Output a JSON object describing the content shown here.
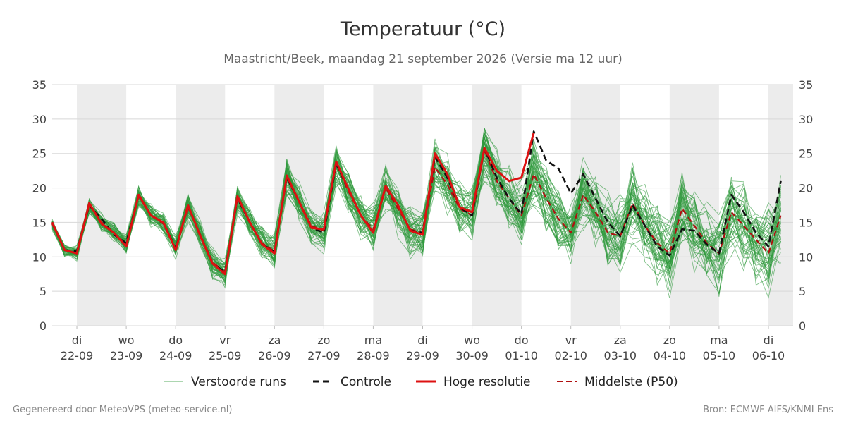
{
  "chart_data": {
    "type": "line",
    "title": "Temperatuur (°C)",
    "subtitle": "Maastricht/Beek, maandag 21 september 2026 (Versie ma 12 uur)",
    "ylim": [
      0,
      35
    ],
    "yticks": [
      0,
      5,
      10,
      15,
      20,
      25,
      30,
      35
    ],
    "grid": true,
    "legend_position": "bottom",
    "x_start": "2026-09-21 12:00",
    "x_end": "2026-10-06 12:00",
    "x_ticks": [
      {
        "date": "2026-09-22",
        "day": "di",
        "label": "22-09"
      },
      {
        "date": "2026-09-23",
        "day": "wo",
        "label": "23-09"
      },
      {
        "date": "2026-09-24",
        "day": "do",
        "label": "24-09"
      },
      {
        "date": "2026-09-25",
        "day": "vr",
        "label": "25-09"
      },
      {
        "date": "2026-09-26",
        "day": "za",
        "label": "26-09"
      },
      {
        "date": "2026-09-27",
        "day": "zo",
        "label": "27-09"
      },
      {
        "date": "2026-09-28",
        "day": "ma",
        "label": "28-09"
      },
      {
        "date": "2026-09-29",
        "day": "di",
        "label": "29-09"
      },
      {
        "date": "2026-09-30",
        "day": "wo",
        "label": "30-09"
      },
      {
        "date": "2026-10-01",
        "day": "do",
        "label": "01-10"
      },
      {
        "date": "2026-10-02",
        "day": "vr",
        "label": "02-10"
      },
      {
        "date": "2026-10-03",
        "day": "za",
        "label": "03-10"
      },
      {
        "date": "2026-10-04",
        "day": "zo",
        "label": "04-10"
      },
      {
        "date": "2026-10-05",
        "day": "ma",
        "label": "05-10"
      },
      {
        "date": "2026-10-06",
        "day": "di",
        "label": "06-10"
      }
    ],
    "shaded_days": [
      "2026-09-22",
      "2026-09-24",
      "2026-09-26",
      "2026-09-28",
      "2026-09-30",
      "2026-10-02",
      "2026-10-04",
      "2026-10-06"
    ],
    "series": [
      {
        "name": "Hoge resolutie",
        "style": "solid",
        "color": "#dd1111",
        "x": [
          "2026-09-21 12:00",
          "2026-09-21 18:00",
          "2026-09-22 00:00",
          "2026-09-22 06:00",
          "2026-09-22 12:00",
          "2026-09-22 18:00",
          "2026-09-23 00:00",
          "2026-09-23 06:00",
          "2026-09-23 12:00",
          "2026-09-23 18:00",
          "2026-09-24 00:00",
          "2026-09-24 06:00",
          "2026-09-24 12:00",
          "2026-09-24 18:00",
          "2026-09-25 00:00",
          "2026-09-25 06:00",
          "2026-09-25 12:00",
          "2026-09-25 18:00",
          "2026-09-26 00:00",
          "2026-09-26 06:00",
          "2026-09-26 12:00",
          "2026-09-26 18:00",
          "2026-09-27 00:00",
          "2026-09-27 06:00",
          "2026-09-27 12:00",
          "2026-09-27 18:00",
          "2026-09-28 00:00",
          "2026-09-28 06:00",
          "2026-09-28 12:00",
          "2026-09-28 18:00",
          "2026-09-29 00:00",
          "2026-09-29 06:00",
          "2026-09-29 12:00",
          "2026-09-29 18:00",
          "2026-09-30 00:00",
          "2026-09-30 06:00",
          "2026-09-30 12:00",
          "2026-09-30 18:00",
          "2026-10-01 00:00",
          "2026-10-01 06:00",
          "2026-10-01 12:00"
        ],
        "values": [
          15.0,
          11.0,
          10.5,
          17.8,
          14.8,
          13.5,
          11.5,
          19.0,
          16.0,
          15.0,
          11.0,
          17.5,
          13.0,
          9.0,
          7.5,
          18.8,
          15.0,
          11.8,
          10.5,
          21.8,
          18.0,
          14.2,
          14.0,
          23.8,
          19.8,
          16.0,
          13.5,
          20.3,
          17.5,
          13.8,
          13.2,
          25.0,
          22.0,
          17.2,
          16.5,
          25.8,
          22.5,
          21.0,
          21.5,
          28.0,
          null
        ]
      },
      {
        "name": "Controle",
        "style": "dashed",
        "color": "#111111",
        "x": [
          "2026-09-21 12:00",
          "2026-09-21 18:00",
          "2026-09-22 00:00",
          "2026-09-22 06:00",
          "2026-09-22 12:00",
          "2026-09-22 18:00",
          "2026-09-23 00:00",
          "2026-09-23 06:00",
          "2026-09-23 12:00",
          "2026-09-23 18:00",
          "2026-09-24 00:00",
          "2026-09-24 06:00",
          "2026-09-24 12:00",
          "2026-09-24 18:00",
          "2026-09-25 00:00",
          "2026-09-25 06:00",
          "2026-09-25 12:00",
          "2026-09-25 18:00",
          "2026-09-26 00:00",
          "2026-09-26 06:00",
          "2026-09-26 12:00",
          "2026-09-26 18:00",
          "2026-09-27 00:00",
          "2026-09-27 06:00",
          "2026-09-27 12:00",
          "2026-09-27 18:00",
          "2026-09-28 00:00",
          "2026-09-28 06:00",
          "2026-09-28 12:00",
          "2026-09-28 18:00",
          "2026-09-29 00:00",
          "2026-09-29 06:00",
          "2026-09-29 12:00",
          "2026-09-29 18:00",
          "2026-09-30 00:00",
          "2026-09-30 06:00",
          "2026-09-30 12:00",
          "2026-09-30 18:00",
          "2026-10-01 00:00",
          "2026-10-01 06:00",
          "2026-10-01 12:00",
          "2026-10-01 18:00",
          "2026-10-02 00:00",
          "2026-10-02 06:00",
          "2026-10-02 12:00",
          "2026-10-02 18:00",
          "2026-10-03 00:00",
          "2026-10-03 06:00",
          "2026-10-03 12:00",
          "2026-10-03 18:00",
          "2026-10-04 00:00",
          "2026-10-04 06:00",
          "2026-10-04 12:00",
          "2026-10-04 18:00",
          "2026-10-05 00:00",
          "2026-10-05 06:00",
          "2026-10-05 12:00",
          "2026-10-05 18:00",
          "2026-10-06 00:00",
          "2026-10-06 06:00",
          "2026-10-06 12:00"
        ],
        "values": [
          15.0,
          11.0,
          10.8,
          17.5,
          15.5,
          13.2,
          12.0,
          19.0,
          16.0,
          15.0,
          11.2,
          17.5,
          13.0,
          9.0,
          7.8,
          18.5,
          15.0,
          11.8,
          10.8,
          21.5,
          18.0,
          14.2,
          13.5,
          23.5,
          19.8,
          16.0,
          13.5,
          20.3,
          17.5,
          13.8,
          13.5,
          24.5,
          21.5,
          17.2,
          16.0,
          25.8,
          21.5,
          18.5,
          16.2,
          28.2,
          24.0,
          22.8,
          19.2,
          22.0,
          18.5,
          15.0,
          13.0,
          17.5,
          14.5,
          11.5,
          10.2,
          14.0,
          13.8,
          11.8,
          10.5,
          19.0,
          16.5,
          13.5,
          11.5,
          21.0,
          null
        ]
      },
      {
        "name": "Middelste (P50)",
        "style": "dashed",
        "color": "#b01010",
        "x": [
          "2026-09-21 12:00",
          "2026-09-21 18:00",
          "2026-09-22 00:00",
          "2026-09-22 06:00",
          "2026-09-22 12:00",
          "2026-09-22 18:00",
          "2026-09-23 00:00",
          "2026-09-23 06:00",
          "2026-09-23 12:00",
          "2026-09-23 18:00",
          "2026-09-24 00:00",
          "2026-09-24 06:00",
          "2026-09-24 12:00",
          "2026-09-24 18:00",
          "2026-09-25 00:00",
          "2026-09-25 06:00",
          "2026-09-25 12:00",
          "2026-09-25 18:00",
          "2026-09-26 00:00",
          "2026-09-26 06:00",
          "2026-09-26 12:00",
          "2026-09-26 18:00",
          "2026-09-27 00:00",
          "2026-09-27 06:00",
          "2026-09-27 12:00",
          "2026-09-27 18:00",
          "2026-09-28 00:00",
          "2026-09-28 06:00",
          "2026-09-28 12:00",
          "2026-09-28 18:00",
          "2026-09-29 00:00",
          "2026-09-29 06:00",
          "2026-09-29 12:00",
          "2026-09-29 18:00",
          "2026-09-30 00:00",
          "2026-09-30 06:00",
          "2026-09-30 12:00",
          "2026-09-30 18:00",
          "2026-10-01 00:00",
          "2026-10-01 06:00",
          "2026-10-01 12:00",
          "2026-10-01 18:00",
          "2026-10-02 00:00",
          "2026-10-02 06:00",
          "2026-10-02 12:00",
          "2026-10-02 18:00",
          "2026-10-03 00:00",
          "2026-10-03 06:00",
          "2026-10-03 12:00",
          "2026-10-03 18:00",
          "2026-10-04 00:00",
          "2026-10-04 06:00",
          "2026-10-04 12:00",
          "2026-10-04 18:00",
          "2026-10-05 00:00",
          "2026-10-05 06:00",
          "2026-10-05 12:00",
          "2026-10-05 18:00",
          "2026-10-06 00:00",
          "2026-10-06 06:00",
          "2026-10-06 12:00"
        ],
        "values": [
          14.8,
          11.0,
          10.5,
          17.5,
          15.0,
          13.5,
          11.8,
          18.8,
          16.0,
          14.8,
          11.2,
          17.2,
          13.2,
          9.2,
          7.8,
          18.5,
          15.0,
          12.0,
          10.8,
          21.5,
          18.0,
          14.5,
          13.8,
          23.5,
          19.5,
          16.0,
          14.0,
          20.0,
          17.0,
          14.0,
          13.5,
          23.0,
          20.5,
          17.0,
          16.0,
          25.5,
          21.0,
          18.5,
          16.0,
          22.0,
          18.5,
          15.5,
          13.5,
          19.0,
          16.5,
          13.5,
          13.0,
          17.8,
          14.5,
          12.0,
          10.5,
          17.0,
          14.5,
          12.0,
          10.5,
          16.5,
          14.5,
          12.5,
          10.5,
          16.0,
          null
        ]
      },
      {
        "name": "Verstoorde runs",
        "style": "thin",
        "color": "#2f9a3c",
        "note_members": 50
      }
    ]
  },
  "legend": [
    {
      "key": "ens",
      "label": "Verstoorde runs"
    },
    {
      "key": "ctrl",
      "label": "Controle"
    },
    {
      "key": "hres",
      "label": "Hoge resolutie"
    },
    {
      "key": "p50",
      "label": "Middelste (P50)"
    }
  ],
  "footer": {
    "left": "Gegenereerd door MeteoVPS (meteo-service.nl)",
    "right": "Bron: ECMWF AIFS/KNMI Ens"
  },
  "colors": {
    "ensemble": "#2f9a3c",
    "control": "#111111",
    "hres": "#dd1111",
    "p50": "#b01010",
    "shade": "#ececec",
    "grid": "#d8d8d8"
  }
}
